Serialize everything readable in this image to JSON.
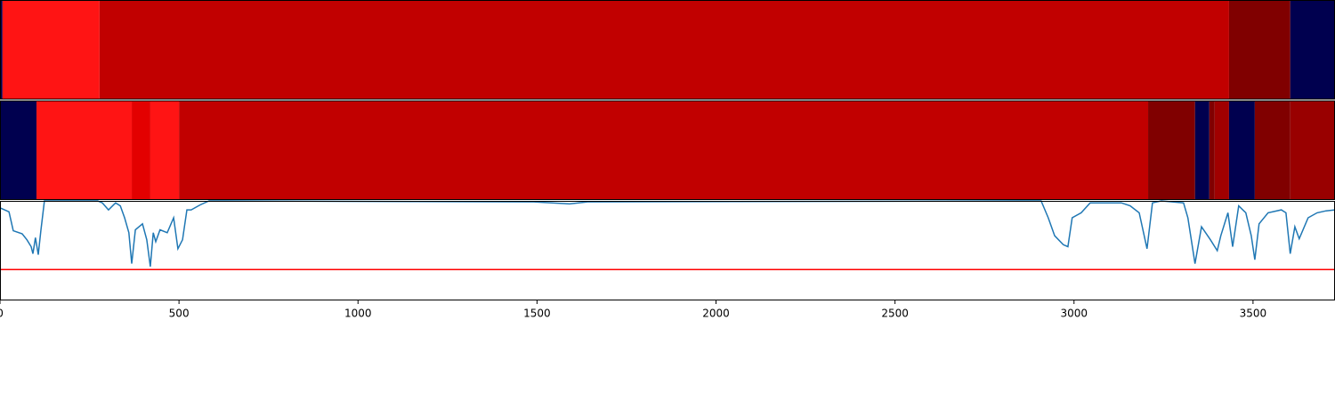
{
  "chart_data": [
    {
      "type": "segments",
      "xlim": [
        0,
        3729
      ],
      "bins": [
        0,
        7,
        278,
        3433,
        3604,
        3729
      ],
      "colors": [
        "#00004f",
        "#ff1414",
        "#c10000",
        "#800000",
        "#00004f"
      ]
    },
    {
      "type": "segments",
      "xlim": [
        0,
        3729
      ],
      "bins": [
        0,
        102,
        368,
        420,
        500,
        3207,
        3338,
        3378,
        3393,
        3433,
        3505,
        3604,
        3729
      ],
      "colors": [
        "#00004f",
        "#ff1414",
        "#e30000",
        "#ff1414",
        "#c10000",
        "#800000",
        "#00004f",
        "#800000",
        "#a00000",
        "#00004f",
        "#800000",
        "#990000"
      ]
    },
    {
      "type": "line",
      "xlim": [
        0,
        3729
      ],
      "ylim": [
        0,
        1
      ],
      "xticks": [
        0,
        500,
        1000,
        1500,
        2000,
        2500,
        3000,
        3500
      ],
      "hline": 0.31,
      "hline_color": "#ff0000",
      "x": [
        0,
        25,
        37,
        62,
        75,
        87,
        92,
        99,
        107,
        114,
        124,
        273,
        286,
        303,
        323,
        336,
        348,
        360,
        368,
        378,
        398,
        410,
        420,
        428,
        435,
        447,
        467,
        485,
        497,
        510,
        522,
        534,
        559,
        584,
        1491,
        1591,
        1641,
        2908,
        2928,
        2946,
        2970,
        2983,
        2995,
        3020,
        3045,
        3132,
        3157,
        3182,
        3204,
        3219,
        3244,
        3306,
        3318,
        3338,
        3356,
        3381,
        3400,
        3410,
        3430,
        3443,
        3460,
        3480,
        3495,
        3505,
        3517,
        3542,
        3579,
        3592,
        3604,
        3617,
        3629,
        3654,
        3679,
        3704,
        3729
      ],
      "series": [
        {
          "color": "#1f77b4",
          "values": [
            0.93,
            0.89,
            0.7,
            0.67,
            0.61,
            0.54,
            0.47,
            0.63,
            0.46,
            0.7,
            1.0,
            1.0,
            0.98,
            0.91,
            0.98,
            0.95,
            0.83,
            0.68,
            0.37,
            0.71,
            0.77,
            0.61,
            0.34,
            0.68,
            0.59,
            0.71,
            0.68,
            0.83,
            0.52,
            0.61,
            0.91,
            0.91,
            0.96,
            1.0,
            0.99,
            0.97,
            0.99,
            1.0,
            0.83,
            0.65,
            0.56,
            0.54,
            0.83,
            0.88,
            0.98,
            0.98,
            0.95,
            0.88,
            0.52,
            0.98,
            1.0,
            0.98,
            0.83,
            0.37,
            0.74,
            0.61,
            0.5,
            0.65,
            0.88,
            0.54,
            0.95,
            0.88,
            0.65,
            0.41,
            0.77,
            0.88,
            0.91,
            0.88,
            0.47,
            0.74,
            0.62,
            0.83,
            0.88,
            0.9,
            0.91
          ]
        }
      ]
    }
  ]
}
